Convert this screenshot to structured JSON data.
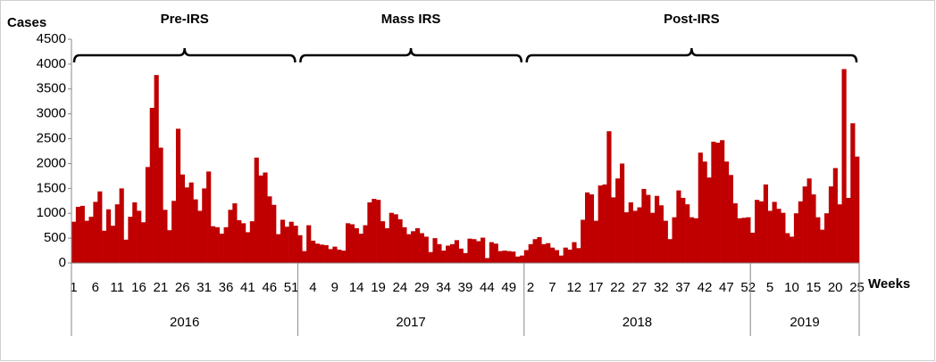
{
  "chart_data": {
    "type": "bar",
    "y_label": "Cases",
    "x_label": "Weeks",
    "color": "#c00000",
    "ylim": [
      0,
      4500
    ],
    "yticks": [
      0,
      500,
      1000,
      1500,
      2000,
      2500,
      3000,
      3500,
      4000,
      4500
    ],
    "groups": [
      {
        "label": "2016",
        "size": 52
      },
      {
        "label": "2017",
        "size": 52
      },
      {
        "label": "2018",
        "size": 52
      },
      {
        "label": "2019",
        "size": 25
      }
    ],
    "phases": [
      {
        "label": "Pre-IRS",
        "groups": [
          0
        ]
      },
      {
        "label": "Mass IRS",
        "groups": [
          1
        ]
      },
      {
        "label": "Post-IRS",
        "groups": [
          2,
          3
        ]
      }
    ],
    "categories": [
      "1",
      null,
      null,
      null,
      null,
      "6",
      null,
      null,
      null,
      null,
      "11",
      null,
      null,
      null,
      null,
      "16",
      null,
      null,
      null,
      null,
      "21",
      null,
      null,
      null,
      null,
      "26",
      null,
      null,
      null,
      null,
      "31",
      null,
      null,
      null,
      null,
      "36",
      null,
      null,
      null,
      null,
      "41",
      null,
      null,
      null,
      null,
      "46",
      null,
      null,
      null,
      null,
      "51",
      null,
      null,
      null,
      null,
      "4",
      null,
      null,
      null,
      null,
      "9",
      null,
      null,
      null,
      null,
      "14",
      null,
      null,
      null,
      null,
      "19",
      null,
      null,
      null,
      null,
      "24",
      null,
      null,
      null,
      null,
      "29",
      null,
      null,
      null,
      null,
      "34",
      null,
      null,
      null,
      null,
      "39",
      null,
      null,
      null,
      null,
      "44",
      null,
      null,
      null,
      null,
      "49",
      null,
      null,
      null,
      null,
      "2",
      null,
      null,
      null,
      null,
      "7",
      null,
      null,
      null,
      null,
      "12",
      null,
      null,
      null,
      null,
      "17",
      null,
      null,
      null,
      null,
      "22",
      null,
      null,
      null,
      null,
      "27",
      null,
      null,
      null,
      null,
      "32",
      null,
      null,
      null,
      null,
      "37",
      null,
      null,
      null,
      null,
      "42",
      null,
      null,
      null,
      null,
      "47",
      null,
      null,
      null,
      null,
      "52",
      null,
      null,
      null,
      null,
      "5",
      null,
      null,
      null,
      null,
      "10",
      null,
      null,
      null,
      null,
      "15",
      null,
      null,
      null,
      null,
      "20",
      null,
      null,
      null,
      null,
      "25"
    ],
    "values": [
      830,
      1130,
      1150,
      850,
      930,
      1230,
      1440,
      650,
      1080,
      750,
      1180,
      1500,
      470,
      930,
      1220,
      1050,
      820,
      1930,
      3120,
      3780,
      2320,
      1070,
      660,
      1250,
      2700,
      1780,
      1520,
      1620,
      1280,
      1050,
      1500,
      1840,
      740,
      720,
      590,
      720,
      1070,
      1200,
      860,
      800,
      620,
      840,
      2120,
      1760,
      1820,
      1340,
      1170,
      580,
      870,
      730,
      830,
      750,
      560,
      240,
      760,
      450,
      390,
      370,
      360,
      280,
      330,
      270,
      250,
      800,
      780,
      700,
      590,
      760,
      1220,
      1290,
      1270,
      840,
      700,
      1010,
      980,
      880,
      720,
      580,
      640,
      700,
      600,
      530,
      220,
      500,
      380,
      250,
      350,
      380,
      460,
      290,
      200,
      490,
      480,
      440,
      510,
      100,
      420,
      390,
      240,
      250,
      240,
      230,
      130,
      150,
      260,
      380,
      480,
      520,
      380,
      400,
      310,
      260,
      150,
      310,
      270,
      420,
      300,
      870,
      1420,
      1380,
      850,
      1560,
      1580,
      2650,
      1320,
      1700,
      2000,
      1020,
      1220,
      1050,
      1120,
      1490,
      1370,
      1010,
      1350,
      1160,
      850,
      480,
      920,
      1460,
      1310,
      1180,
      920,
      900,
      2220,
      2040,
      1720,
      2440,
      2420,
      2470,
      2040,
      1770,
      1200,
      900,
      910,
      920,
      610,
      1270,
      1240,
      1580,
      1050,
      1230,
      1090,
      1010,
      600,
      530,
      1000,
      1240,
      1540,
      1700,
      1380,
      920,
      670,
      1000,
      1540,
      1910,
      1180,
      3900,
      1310,
      2810,
      2140
    ]
  }
}
